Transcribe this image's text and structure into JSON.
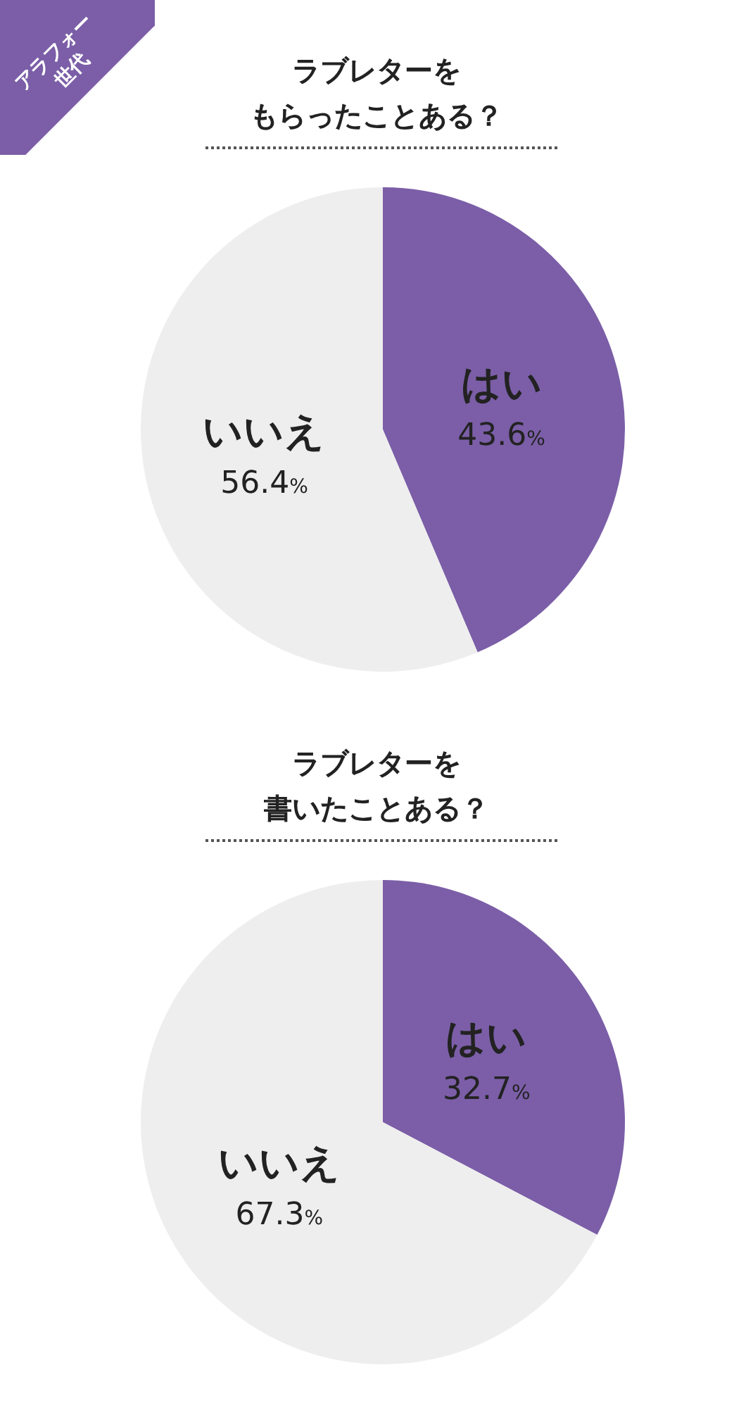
{
  "chart_data": [
    {
      "type": "pie",
      "title": "ラブレターを",
      "subtitle": "もらったことある？",
      "categories": [
        "はい",
        "いいえ"
      ],
      "values": [
        43.6,
        56.4
      ],
      "colors": [
        "#7b5ea7",
        "#eeeeee"
      ],
      "value_labels": [
        "43.6%",
        "56.4%"
      ],
      "annotations": [
        "アラフォー世代"
      ]
    },
    {
      "type": "pie",
      "title": "ラブレターを",
      "subtitle": "書いたことある？",
      "categories": [
        "はい",
        "いいえ"
      ],
      "values": [
        32.7,
        67.3
      ],
      "colors": [
        "#7b5ea7",
        "#eeeeee"
      ],
      "value_labels": [
        "32.7%",
        "67.3%"
      ]
    }
  ]
}
